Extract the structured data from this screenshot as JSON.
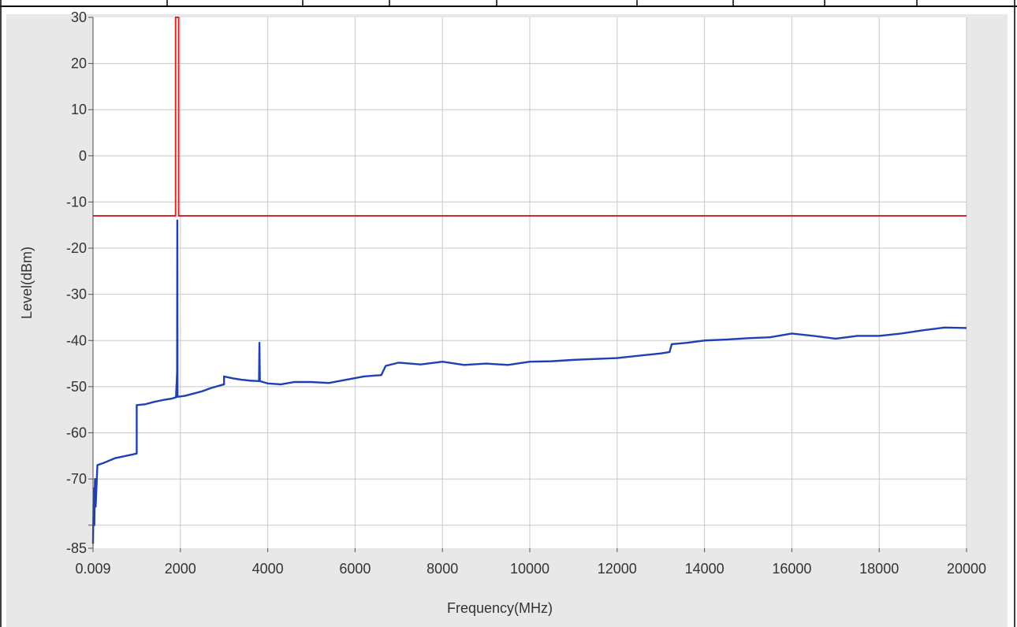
{
  "chart_data": {
    "type": "line",
    "title": "",
    "xlabel": "Frequency(MHz)",
    "ylabel": "Level(dBm)",
    "xlim": [
      0.009,
      20000
    ],
    "ylim": [
      -85,
      30
    ],
    "x_ticks": [
      0.009,
      2000,
      4000,
      6000,
      8000,
      10000,
      12000,
      14000,
      16000,
      18000,
      20000
    ],
    "x_tick_labels": [
      "0.009",
      "2000",
      "4000",
      "6000",
      "8000",
      "10000",
      "12000",
      "14000",
      "16000",
      "18000",
      "20000"
    ],
    "y_ticks": [
      30,
      20,
      10,
      0,
      -10,
      -20,
      -30,
      -40,
      -50,
      -60,
      -70,
      -80,
      -85
    ],
    "y_tick_labels": [
      "30",
      "20",
      "10",
      "0",
      "-10",
      "-20",
      "-30",
      "-40",
      "-50",
      "-60",
      "-70",
      "",
      "-85"
    ],
    "grid": true,
    "legend": "none",
    "series": [
      {
        "color": "#d42a2a",
        "role": "limit",
        "points": [
          [
            0.009,
            -13
          ],
          [
            1890,
            -13
          ],
          [
            1890,
            30
          ],
          [
            1960,
            30
          ],
          [
            1960,
            -13
          ],
          [
            20000,
            -13
          ]
        ]
      },
      {
        "color": "#1f3fb4",
        "role": "measurement",
        "points": [
          [
            0.009,
            -84
          ],
          [
            15,
            -72
          ],
          [
            30,
            -80
          ],
          [
            45,
            -70
          ],
          [
            60,
            -76
          ],
          [
            100,
            -67
          ],
          [
            250,
            -66.5
          ],
          [
            500,
            -65.5
          ],
          [
            750,
            -65
          ],
          [
            1000,
            -64.5
          ],
          [
            1000,
            -54
          ],
          [
            1200,
            -53.8
          ],
          [
            1400,
            -53.3
          ],
          [
            1600,
            -52.9
          ],
          [
            1800,
            -52.6
          ],
          [
            1900,
            -52.3
          ],
          [
            1925,
            -47
          ],
          [
            1930,
            -14
          ],
          [
            1935,
            -52.2
          ],
          [
            2100,
            -52
          ],
          [
            2300,
            -51.5
          ],
          [
            2500,
            -51
          ],
          [
            2700,
            -50.3
          ],
          [
            3000,
            -49.5
          ],
          [
            3000,
            -47.8
          ],
          [
            3200,
            -48.2
          ],
          [
            3400,
            -48.5
          ],
          [
            3600,
            -48.7
          ],
          [
            3800,
            -48.8
          ],
          [
            3810,
            -40.5
          ],
          [
            3820,
            -48.8
          ],
          [
            4000,
            -49.3
          ],
          [
            4300,
            -49.5
          ],
          [
            4600,
            -49
          ],
          [
            5000,
            -49
          ],
          [
            5400,
            -49.2
          ],
          [
            5800,
            -48.5
          ],
          [
            6200,
            -47.8
          ],
          [
            6600,
            -47.5
          ],
          [
            6700,
            -45.5
          ],
          [
            7000,
            -44.8
          ],
          [
            7500,
            -45.2
          ],
          [
            8000,
            -44.6
          ],
          [
            8500,
            -45.3
          ],
          [
            9000,
            -45
          ],
          [
            9500,
            -45.3
          ],
          [
            10000,
            -44.6
          ],
          [
            10500,
            -44.5
          ],
          [
            11000,
            -44.2
          ],
          [
            11500,
            -44
          ],
          [
            12000,
            -43.8
          ],
          [
            12500,
            -43.3
          ],
          [
            13000,
            -42.8
          ],
          [
            13200,
            -42.5
          ],
          [
            13250,
            -40.8
          ],
          [
            13600,
            -40.5
          ],
          [
            14000,
            -40
          ],
          [
            14500,
            -39.8
          ],
          [
            15000,
            -39.5
          ],
          [
            15500,
            -39.3
          ],
          [
            16000,
            -38.5
          ],
          [
            16500,
            -39
          ],
          [
            17000,
            -39.6
          ],
          [
            17500,
            -39
          ],
          [
            18000,
            -39
          ],
          [
            18500,
            -38.5
          ],
          [
            19000,
            -37.8
          ],
          [
            19500,
            -37.2
          ],
          [
            20000,
            -37.3
          ]
        ]
      }
    ]
  }
}
